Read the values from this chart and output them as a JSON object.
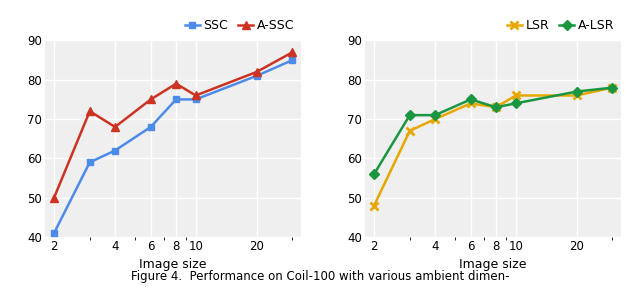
{
  "x_values": [
    2,
    3,
    4,
    6,
    8,
    10,
    20,
    30
  ],
  "ssc": [
    41,
    59,
    62,
    68,
    75,
    75,
    81,
    85
  ],
  "assc": [
    50,
    72,
    68,
    75,
    79,
    76,
    82,
    87
  ],
  "lsr": [
    48,
    67,
    70,
    74,
    73,
    76,
    76,
    78
  ],
  "alsr": [
    56,
    71,
    71,
    75,
    73,
    74,
    77,
    78
  ],
  "ylim": [
    40,
    90
  ],
  "xlabel": "Image size",
  "ssc_color": "#4c8be8",
  "assc_color": "#cc3322",
  "lsr_color": "#e6a800",
  "alsr_color": "#1a9641",
  "bg_color": "#efefef",
  "grid_color": "#ffffff"
}
